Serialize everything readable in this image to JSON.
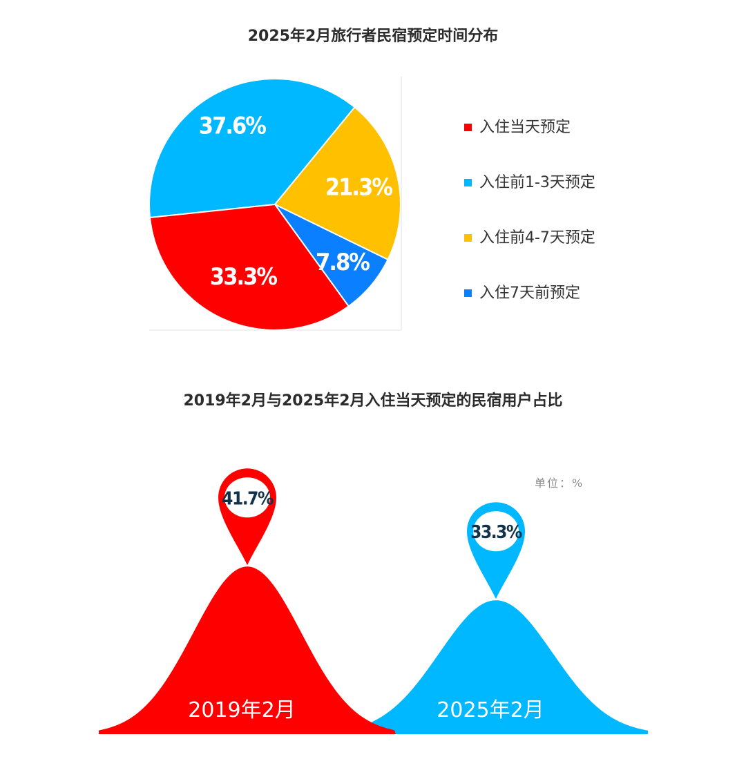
{
  "chart_data": [
    {
      "type": "pie",
      "title": "2025年2月旅行者民宿预定时间分布",
      "slices": [
        {
          "label": "入住当天预定",
          "value": 33.3,
          "value_label": "33.3%",
          "color": "#ff0000"
        },
        {
          "label": "入住前1-3天预定",
          "value": 37.6,
          "value_label": "37.6%",
          "color": "#00b8ff"
        },
        {
          "label": "入住前4-7天预定",
          "value": 21.3,
          "value_label": "21.3%",
          "color": "#ffc000"
        },
        {
          "label": "入住7天前预定",
          "value": 7.8,
          "value_label": "7.8%",
          "color": "#0a7fff"
        }
      ],
      "legend_position": "right"
    },
    {
      "type": "bar",
      "title": "2019年2月与2025年2月入住当天预定的民宿用户占比",
      "unit": "单位：%",
      "categories": [
        "2019年2月",
        "2025年2月"
      ],
      "values": [
        41.7,
        33.3
      ],
      "value_labels": [
        "41.7%",
        "33.3%"
      ],
      "colors": [
        "#ff0000",
        "#00b8ff"
      ]
    }
  ]
}
